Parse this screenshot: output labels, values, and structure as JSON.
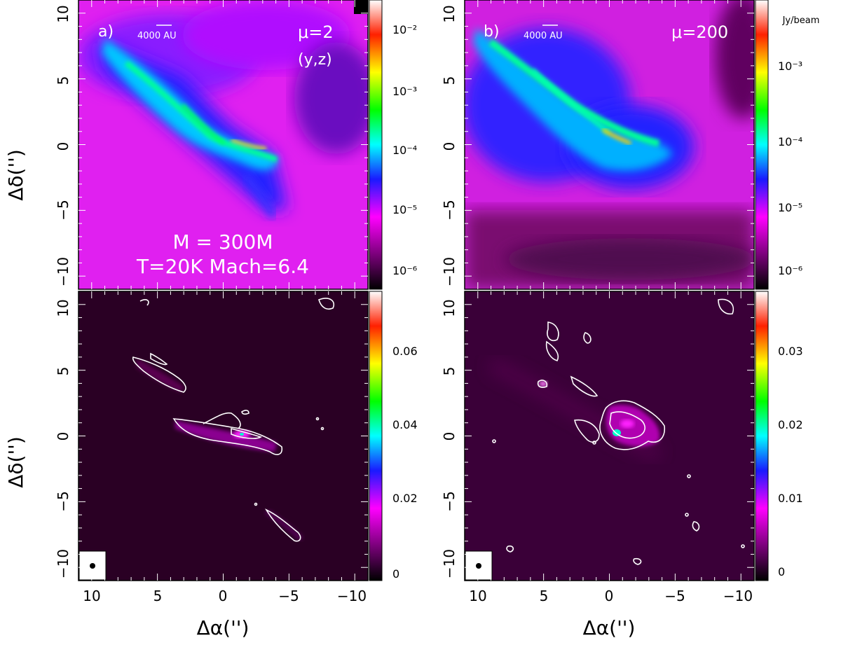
{
  "figure": {
    "axis_labels": {
      "y": "Δδ('')",
      "x": "Δα('')"
    },
    "x_ticks": [
      "10",
      "5",
      "0",
      "−5",
      "−10"
    ],
    "y_ticks": [
      "10",
      "5",
      "0",
      "−5",
      "−10"
    ],
    "x_range": [
      11,
      -11
    ],
    "y_range": [
      -11,
      11
    ],
    "panels": {
      "top_left": {
        "label": "a)",
        "scalebar": "4000 AU",
        "mu": "μ=2",
        "projection": "(y,z)",
        "caption_line1": "M = 300M",
        "caption_line2": "T=20K  Mach=6.4",
        "colorbar_ticks": [
          "10⁻²",
          "10⁻³",
          "10⁻⁴",
          "10⁻⁵",
          "10⁻⁶"
        ]
      },
      "top_right": {
        "label": "b)",
        "scalebar": "4000 AU",
        "mu": "μ=200",
        "colorbar_unit": "Jy/beam",
        "colorbar_ticks": [
          "10⁻³",
          "10⁻⁴",
          "10⁻⁵",
          "10⁻⁶"
        ]
      },
      "bottom_left": {
        "colorbar_ticks": [
          "0.06",
          "0.04",
          "0.02",
          "0"
        ]
      },
      "bottom_right": {
        "colorbar_ticks": [
          "0.03",
          "0.02",
          "0.01",
          "0"
        ]
      }
    },
    "colors": {
      "low": "#ff00ff",
      "mid": "#1a1aff",
      "high": "#00ff66"
    }
  }
}
